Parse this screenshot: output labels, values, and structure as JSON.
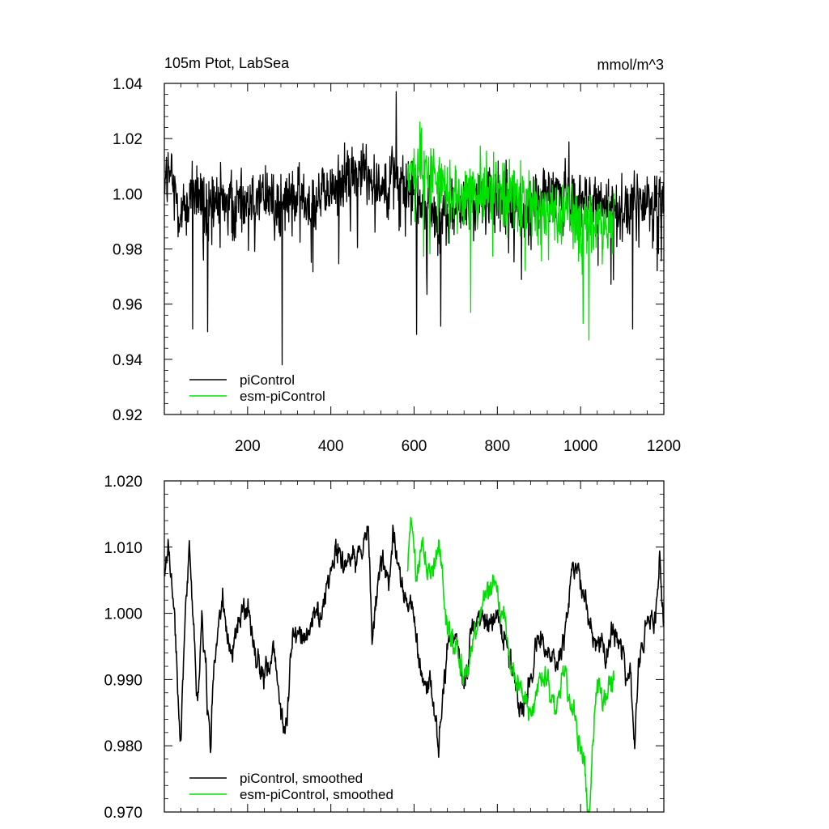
{
  "chart_data": [
    {
      "type": "line",
      "title": "105m Ptot, LabSea",
      "units": "mmol/m^3",
      "xlim": [
        0,
        1200
      ],
      "ylim": [
        0.92,
        1.04
      ],
      "x_ticks": [
        200,
        400,
        600,
        800,
        1000,
        1200
      ],
      "x_tick_labels": [
        "200",
        "400",
        "600",
        "800",
        "1000",
        "1200"
      ],
      "y_ticks": [
        0.92,
        0.94,
        0.96,
        0.98,
        1.0,
        1.02,
        1.04
      ],
      "y_tick_labels": [
        "0.92",
        "0.94",
        "0.96",
        "0.98",
        "1.00",
        "1.02",
        "1.04"
      ],
      "grid": false,
      "legend": "bottom-left",
      "series": [
        {
          "name": "piControl",
          "color": "#000000",
          "x_range": [
            1,
            1200
          ],
          "knots": [
            [
              1,
              1.008
            ],
            [
              20,
              1.004
            ],
            [
              40,
              0.992
            ],
            [
              60,
              0.998
            ],
            [
              80,
              1.001
            ],
            [
              100,
              0.992
            ],
            [
              120,
              0.996
            ],
            [
              150,
              0.998
            ],
            [
              200,
              0.998
            ],
            [
              250,
              0.999
            ],
            [
              280,
              0.995
            ],
            [
              320,
              0.999
            ],
            [
              360,
              0.998
            ],
            [
              400,
              1.001
            ],
            [
              440,
              1.006
            ],
            [
              480,
              1.008
            ],
            [
              520,
              1.004
            ],
            [
              560,
              1.006
            ],
            [
              600,
              1.0
            ],
            [
              640,
              0.993
            ],
            [
              680,
              0.992
            ],
            [
              720,
              0.996
            ],
            [
              760,
              0.997
            ],
            [
              800,
              0.999
            ],
            [
              840,
              0.995
            ],
            [
              880,
              0.994
            ],
            [
              920,
              1.0
            ],
            [
              960,
              1.002
            ],
            [
              1000,
              0.998
            ],
            [
              1040,
              0.996
            ],
            [
              1080,
              0.995
            ],
            [
              1120,
              0.995
            ],
            [
              1160,
              0.997
            ],
            [
              1200,
              0.998
            ]
          ],
          "spikes": [
            [
              283,
              0.938
            ],
            [
              557,
              1.037
            ],
            [
              606,
              0.949
            ],
            [
              104,
              0.95
            ],
            [
              68,
              0.951
            ],
            [
              1125,
              0.951
            ],
            [
              664,
              0.952
            ]
          ]
        },
        {
          "name": "esm-piControl",
          "color": "#00e000",
          "x_range": [
            584,
            1080
          ],
          "knots": [
            [
              584,
              1.006
            ],
            [
              620,
              1.008
            ],
            [
              660,
              1.006
            ],
            [
              700,
              1.001
            ],
            [
              740,
              1.0
            ],
            [
              780,
              1.001
            ],
            [
              820,
              1.0
            ],
            [
              860,
              0.996
            ],
            [
              900,
              0.994
            ],
            [
              940,
              0.994
            ],
            [
              980,
              0.992
            ],
            [
              1020,
              0.988
            ],
            [
              1060,
              0.99
            ],
            [
              1080,
              0.992
            ]
          ],
          "spikes": [
            [
              1020,
              0.947
            ],
            [
              614,
              1.026
            ],
            [
              736,
              0.957
            ],
            [
              1006,
              0.953
            ]
          ]
        }
      ]
    },
    {
      "type": "line",
      "xlim": [
        0,
        1200
      ],
      "ylim": [
        0.97,
        1.02
      ],
      "x_ticks": [
        200,
        400,
        600,
        800,
        1000,
        1200
      ],
      "y_ticks": [
        0.97,
        0.98,
        0.99,
        1.0,
        1.01,
        1.02
      ],
      "y_tick_labels": [
        "0.970",
        "0.980",
        "0.990",
        "1.000",
        "1.010",
        "1.020"
      ],
      "grid": false,
      "legend": "bottom-left",
      "series": [
        {
          "name": "piControl, smoothed",
          "color": "#000000",
          "x_range": [
            1,
            1200
          ],
          "knots": [
            [
              1,
              1.007
            ],
            [
              10,
              1.009
            ],
            [
              20,
              1.002
            ],
            [
              30,
              0.992
            ],
            [
              40,
              0.98
            ],
            [
              50,
              1.0
            ],
            [
              60,
              1.01
            ],
            [
              70,
              0.998
            ],
            [
              80,
              0.987
            ],
            [
              90,
              0.999
            ],
            [
              100,
              0.991
            ],
            [
              110,
              0.98
            ],
            [
              120,
              0.992
            ],
            [
              140,
              1.002
            ],
            [
              160,
              0.993
            ],
            [
              180,
              0.998
            ],
            [
              200,
              1.002
            ],
            [
              220,
              0.993
            ],
            [
              250,
              0.99
            ],
            [
              260,
              0.996
            ],
            [
              280,
              0.984
            ],
            [
              290,
              0.981
            ],
            [
              310,
              0.997
            ],
            [
              340,
              0.996
            ],
            [
              360,
              0.999
            ],
            [
              380,
              1.001
            ],
            [
              400,
              1.006
            ],
            [
              420,
              1.01
            ],
            [
              440,
              1.006
            ],
            [
              460,
              1.008
            ],
            [
              480,
              1.01
            ],
            [
              490,
              1.014
            ],
            [
              500,
              0.995
            ],
            [
              520,
              1.008
            ],
            [
              540,
              1.005
            ],
            [
              550,
              1.012
            ],
            [
              560,
              1.007
            ],
            [
              580,
              1.002
            ],
            [
              600,
              1.0
            ],
            [
              620,
              0.99
            ],
            [
              640,
              0.988
            ],
            [
              660,
              0.981
            ],
            [
              680,
              0.995
            ],
            [
              700,
              0.996
            ],
            [
              720,
              0.989
            ],
            [
              740,
              0.997
            ],
            [
              760,
              1.0
            ],
            [
              780,
              0.998
            ],
            [
              800,
              1.0
            ],
            [
              820,
              0.995
            ],
            [
              840,
              0.99
            ],
            [
              860,
              0.985
            ],
            [
              880,
              0.99
            ],
            [
              900,
              0.997
            ],
            [
              920,
              0.994
            ],
            [
              940,
              0.994
            ],
            [
              960,
              0.995
            ],
            [
              980,
              1.008
            ],
            [
              1000,
              1.005
            ],
            [
              1020,
              1.0
            ],
            [
              1040,
              0.996
            ],
            [
              1060,
              0.993
            ],
            [
              1080,
              0.998
            ],
            [
              1100,
              0.994
            ],
            [
              1120,
              0.99
            ],
            [
              1130,
              0.98
            ],
            [
              1140,
              0.992
            ],
            [
              1160,
              0.998
            ],
            [
              1180,
              1.0
            ],
            [
              1190,
              1.009
            ],
            [
              1200,
              0.998
            ]
          ]
        },
        {
          "name": "esm-piControl, smoothed",
          "color": "#00e000",
          "x_range": [
            584,
            1080
          ],
          "knots": [
            [
              584,
              1.006
            ],
            [
              593,
              1.015
            ],
            [
              605,
              1.005
            ],
            [
              620,
              1.01
            ],
            [
              640,
              1.006
            ],
            [
              660,
              1.01
            ],
            [
              680,
              0.998
            ],
            [
              700,
              0.995
            ],
            [
              720,
              0.99
            ],
            [
              740,
              0.995
            ],
            [
              760,
              1.0
            ],
            [
              780,
              1.004
            ],
            [
              800,
              1.003
            ],
            [
              820,
              0.998
            ],
            [
              840,
              0.99
            ],
            [
              860,
              0.988
            ],
            [
              880,
              0.984
            ],
            [
              900,
              0.99
            ],
            [
              920,
              0.99
            ],
            [
              940,
              0.985
            ],
            [
              960,
              0.992
            ],
            [
              980,
              0.985
            ],
            [
              1000,
              0.98
            ],
            [
              1010,
              0.975
            ],
            [
              1020,
              0.97
            ],
            [
              1030,
              0.98
            ],
            [
              1040,
              0.99
            ],
            [
              1060,
              0.987
            ],
            [
              1080,
              0.99
            ]
          ]
        }
      ]
    }
  ]
}
